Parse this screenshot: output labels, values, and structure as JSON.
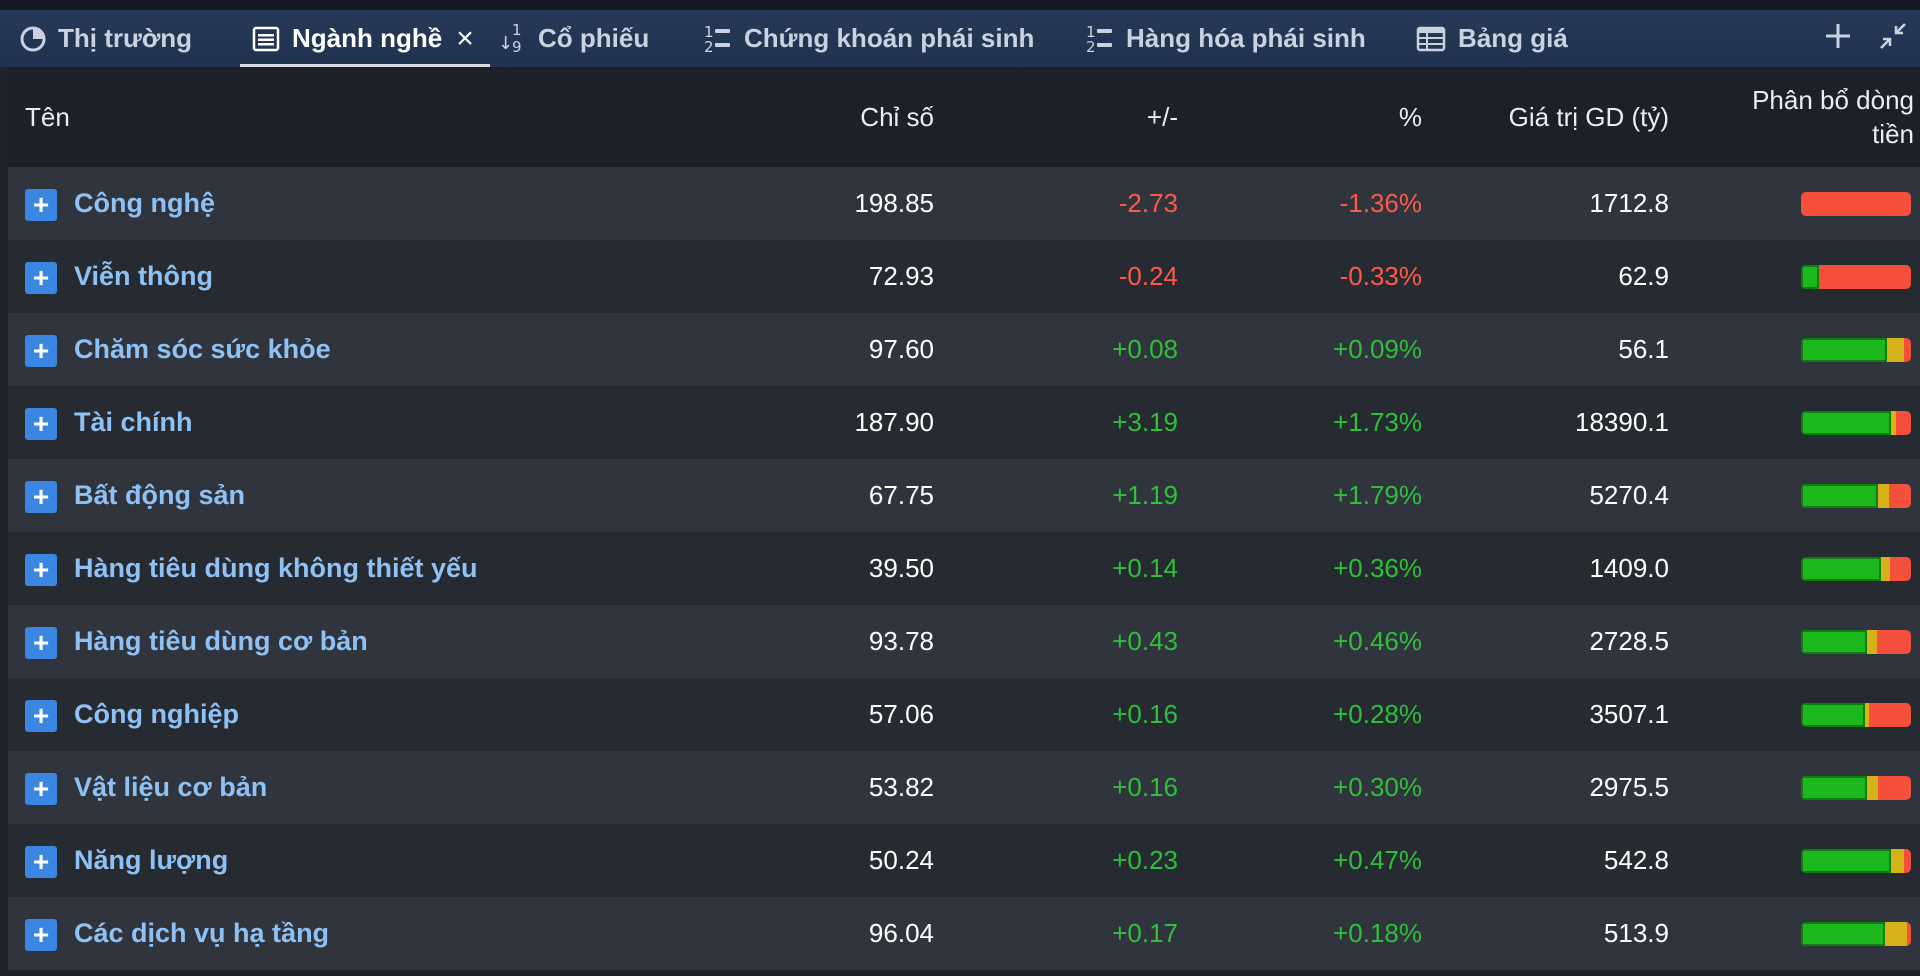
{
  "tabs": [
    {
      "label": "Thị trường",
      "icon": "pie-chart-icon",
      "active": false
    },
    {
      "label": "Ngành nghề",
      "icon": "list-icon",
      "active": true,
      "closable": true
    },
    {
      "label": "Cổ phiếu",
      "icon": "sort-numeric-icon",
      "active": false
    },
    {
      "label": "Chứng khoán phái sinh",
      "icon": "numbered-list-icon",
      "active": false
    },
    {
      "label": "Hàng hóa phái sinh",
      "icon": "numbered-list-icon",
      "active": false
    },
    {
      "label": "Bảng giá",
      "icon": "table-icon",
      "active": false
    }
  ],
  "tab_icons": {
    "sort_top": "1",
    "sort_bottom": "9",
    "num_top": "1",
    "num_bottom": "2"
  },
  "toolbar": {
    "add_icon": "plus-icon",
    "collapse_icon": "collapse-icon"
  },
  "table": {
    "headers": {
      "name": "Tên",
      "index": "Chỉ số",
      "change": "+/-",
      "percent": "%",
      "value": "Giá trị GD (tỷ)",
      "flow_line1": "Phân bổ dòng",
      "flow_line2": "tiền"
    },
    "rows": [
      {
        "name": "Công nghệ",
        "index": "198.85",
        "change": "-2.73",
        "percent": "-1.36%",
        "value": "1712.8",
        "dir": "down",
        "flow": {
          "up": 0,
          "flat": 0,
          "down": 100
        }
      },
      {
        "name": "Viễn thông",
        "index": "72.93",
        "change": "-0.24",
        "percent": "-0.33%",
        "value": "62.9",
        "dir": "down",
        "flow": {
          "up": 16,
          "flat": 0,
          "down": 84
        }
      },
      {
        "name": "Chăm sóc sức khỏe",
        "index": "97.60",
        "change": "+0.08",
        "percent": "+0.09%",
        "value": "56.1",
        "dir": "up",
        "flow": {
          "up": 78,
          "flat": 16,
          "down": 6
        }
      },
      {
        "name": "Tài chính",
        "index": "187.90",
        "change": "+3.19",
        "percent": "+1.73%",
        "value": "18390.1",
        "dir": "up",
        "flow": {
          "up": 82,
          "flat": 4,
          "down": 14
        }
      },
      {
        "name": "Bất động sản",
        "index": "67.75",
        "change": "+1.19",
        "percent": "+1.79%",
        "value": "5270.4",
        "dir": "up",
        "flow": {
          "up": 70,
          "flat": 10,
          "down": 20
        }
      },
      {
        "name": "Hàng tiêu dùng không thiết yếu",
        "index": "39.50",
        "change": "+0.14",
        "percent": "+0.36%",
        "value": "1409.0",
        "dir": "up",
        "flow": {
          "up": 73,
          "flat": 8,
          "down": 19
        }
      },
      {
        "name": "Hàng tiêu dùng cơ bản",
        "index": "93.78",
        "change": "+0.43",
        "percent": "+0.46%",
        "value": "2728.5",
        "dir": "up",
        "flow": {
          "up": 60,
          "flat": 9,
          "down": 31
        }
      },
      {
        "name": "Công nghiệp",
        "index": "57.06",
        "change": "+0.16",
        "percent": "+0.28%",
        "value": "3507.1",
        "dir": "up",
        "flow": {
          "up": 58,
          "flat": 4,
          "down": 38
        }
      },
      {
        "name": "Vật liệu cơ bản",
        "index": "53.82",
        "change": "+0.16",
        "percent": "+0.30%",
        "value": "2975.5",
        "dir": "up",
        "flow": {
          "up": 60,
          "flat": 10,
          "down": 30
        }
      },
      {
        "name": "Năng lượng",
        "index": "50.24",
        "change": "+0.23",
        "percent": "+0.47%",
        "value": "542.8",
        "dir": "up",
        "flow": {
          "up": 82,
          "flat": 12,
          "down": 6
        }
      },
      {
        "name": "Các dịch vụ hạ tầng",
        "index": "96.04",
        "change": "+0.17",
        "percent": "+0.18%",
        "value": "513.9",
        "dir": "up",
        "flow": {
          "up": 76,
          "flat": 20,
          "down": 4
        }
      }
    ]
  },
  "colors": {
    "up": "#2fbf3a",
    "down": "#ff5a48",
    "accent": "#3b86e0",
    "name": "#8fc1f5"
  }
}
